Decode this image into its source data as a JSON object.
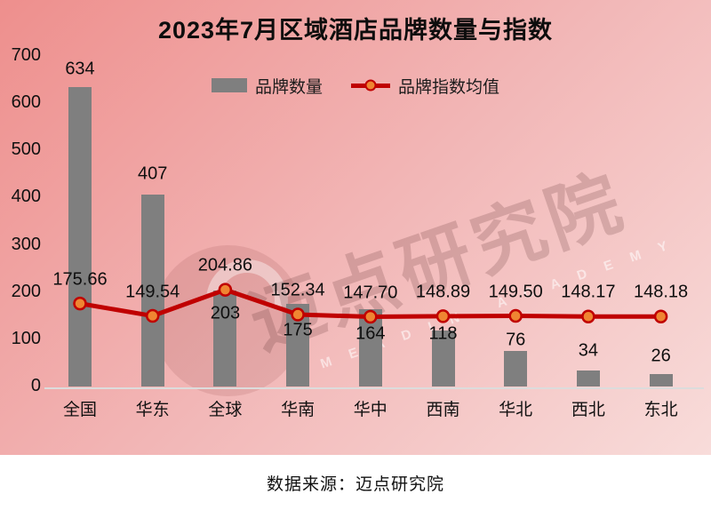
{
  "title": "2023年7月区域酒店品牌数量与指数",
  "legend": [
    {
      "label": "品牌数量",
      "swatch": "gray-bar"
    },
    {
      "label": "品牌指数均值",
      "swatch": "red-line-with-dot"
    }
  ],
  "watermark": {
    "text": "迈点研究院",
    "subtext": "MEADIN ACADEMY"
  },
  "footer": {
    "source": "数据来源：迈点研究院"
  },
  "colors": {
    "background_start": "#ee8f8d",
    "background_mid": "#f2b7b7",
    "background_end": "#f8dcda",
    "bar": "#7f7f7f",
    "line": "#c00000",
    "marker_fill": "#ef8532",
    "axis_line": "#dcdcdc",
    "text": "#111111",
    "footer_background": "#ffffff"
  },
  "chart_data": {
    "type": "bar",
    "combo": "bar+line",
    "title": "2023年7月区域酒店品牌数量与指数",
    "categories": [
      "全国",
      "华东",
      "全球",
      "华南",
      "华中",
      "西南",
      "华北",
      "西北",
      "东北"
    ],
    "series": [
      {
        "name": "品牌数量",
        "type": "bar",
        "color": "#7f7f7f",
        "values": [
          634,
          407,
          203,
          175,
          164,
          118,
          76,
          34,
          26
        ]
      },
      {
        "name": "品牌指数均值",
        "type": "line",
        "color": "#c00000",
        "marker_color": "#ef8532",
        "values": [
          175.66,
          149.54,
          204.86,
          152.34,
          147.7,
          148.89,
          149.5,
          148.17,
          148.18
        ],
        "labels": [
          "175.66",
          "149.54",
          "204.86",
          "152.34",
          "147.70",
          "148.89",
          "149.50",
          "148.17",
          "148.18"
        ]
      }
    ],
    "xlabel": "",
    "ylabel": "",
    "ylim": [
      0,
      700
    ],
    "ytick_step": 100,
    "grid": false,
    "legend_position": "top-center",
    "layout_hints": {
      "bar_label_dy": [
        -20,
        -23,
        26,
        30,
        28,
        4,
        -12,
        -22,
        -20
      ],
      "line_label_dy": -27
    }
  }
}
